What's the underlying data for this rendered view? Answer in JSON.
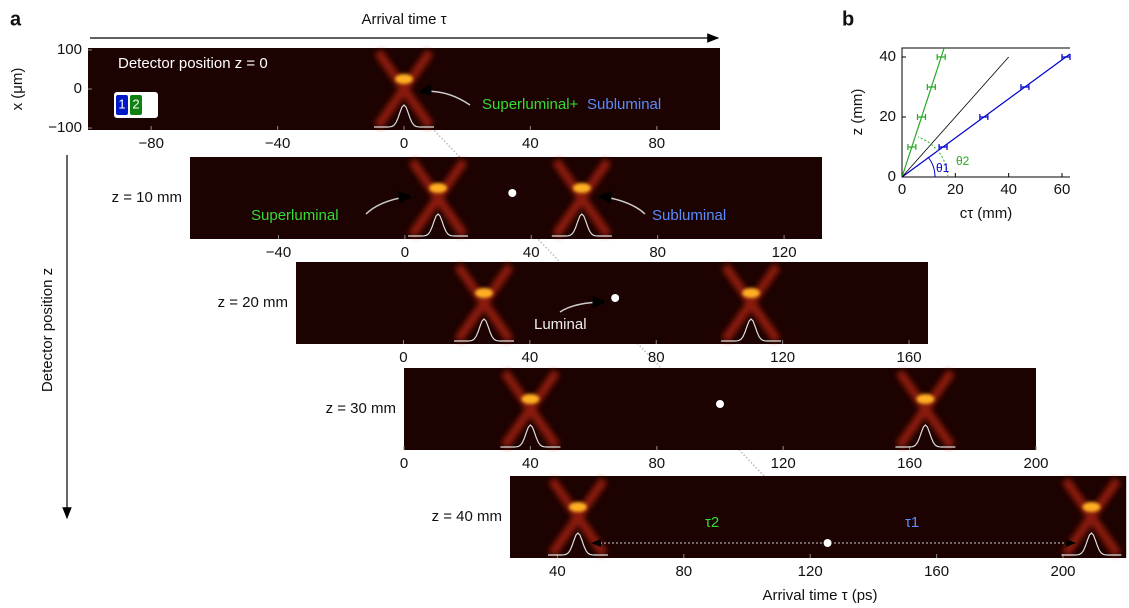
{
  "chart_data": [
    {
      "type": "strips",
      "panel_label": "a",
      "title": "Arrival time τ",
      "xlabel": "Arrival time τ (ps)",
      "ylabel": "Detector position z",
      "strip_ylabel": "x (μm)",
      "ylim": [
        -105,
        105
      ],
      "yticks": [
        {
          "value": -100,
          "label": "−100"
        },
        0,
        100
      ],
      "channel_labels": [
        "1",
        "2"
      ],
      "channel_colors": [
        "#0018c8",
        "#108010"
      ],
      "strips": [
        {
          "label": "Detector position z = 0",
          "xlim": [
            -100,
            100
          ],
          "xticks": [
            {
              "value": -80,
              "label": "−80"
            },
            {
              "value": -40,
              "label": "−40"
            },
            0,
            40,
            80
          ],
          "peaks": [
            0
          ],
          "notes": [
            "Superluminal+",
            "Subluminal"
          ]
        },
        {
          "label": "z = 10 mm",
          "xlim": [
            -68,
            132
          ],
          "xticks": [
            {
              "value": -40,
              "label": "−40"
            },
            0,
            40,
            80,
            120
          ],
          "peaks": [
            10.5,
            56
          ],
          "luminal": 34,
          "notes": [
            "Superluminal",
            "Subluminal"
          ]
        },
        {
          "label": "z = 20 mm",
          "xlim": [
            -34,
            166
          ],
          "xticks": [
            0,
            40,
            80,
            120,
            160
          ],
          "peaks": [
            25.5,
            110
          ],
          "luminal": 67,
          "notes": [
            "Luminal"
          ]
        },
        {
          "label": "z = 30 mm",
          "xlim": [
            0,
            200
          ],
          "xticks": [
            0,
            40,
            80,
            120,
            160,
            200
          ],
          "peaks": [
            40,
            165
          ],
          "luminal": 100
        },
        {
          "label": "z = 40 mm",
          "xlim": [
            25,
            220
          ],
          "xticks": [
            40,
            80,
            120,
            160,
            200
          ],
          "peaks": [
            46.5,
            209
          ],
          "luminal": 125.5,
          "notes": [
            "τ2",
            "τ1"
          ]
        }
      ],
      "note_colors": [
        "#33dd33",
        "#5a8cff"
      ]
    },
    {
      "type": "scatter",
      "panel_label": "b",
      "xlabel": "cτ (mm)",
      "ylabel": "z (mm)",
      "xlim": [
        0,
        63
      ],
      "ylim": [
        0,
        43
      ],
      "xticks": [
        0,
        20,
        40,
        60
      ],
      "yticks": [
        0,
        20,
        40
      ],
      "angle_labels": [
        "θ1",
        "θ2"
      ],
      "series": [
        {
          "color": "#22aa22",
          "x": [
            3.7,
            7.3,
            11,
            14.7
          ],
          "values": [
            10,
            20,
            30,
            40
          ],
          "error": [
            1.5,
            1.5,
            1.5,
            1.5
          ],
          "fit": {
            "x": [
              0,
              15.8
            ],
            "values": [
              0,
              43
            ]
          }
        },
        {
          "color": "#0000cc",
          "x": [
            15.4,
            30.7,
            46.1,
            61.5
          ],
          "values": [
            10,
            20,
            30,
            40
          ],
          "error": [
            1.5,
            1.5,
            1.5,
            1.5
          ],
          "fit": {
            "x": [
              0,
              63
            ],
            "values": [
              0,
              41
            ]
          }
        },
        {
          "color": "#000000",
          "x": [
            0,
            40
          ],
          "values": [
            0,
            40
          ]
        }
      ]
    }
  ]
}
